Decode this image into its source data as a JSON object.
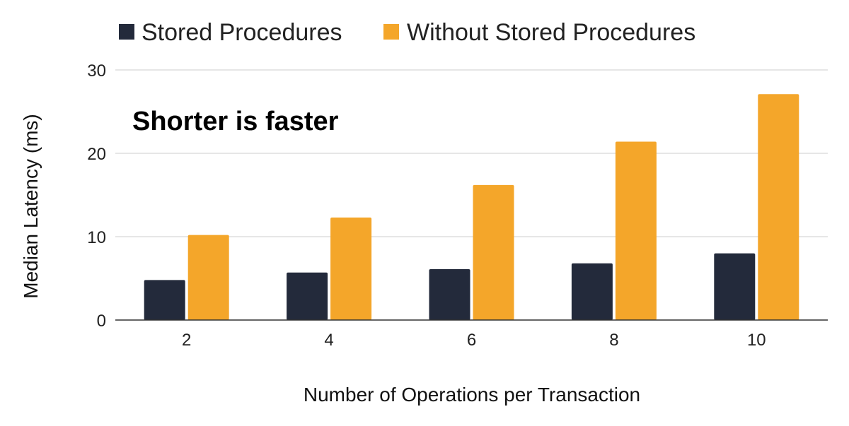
{
  "chart_data": {
    "type": "bar",
    "categories": [
      "2",
      "4",
      "6",
      "8",
      "10"
    ],
    "series": [
      {
        "name": "Stored Procedures",
        "color": "#232a3b",
        "values": [
          4.8,
          5.7,
          6.1,
          6.8,
          8.0
        ]
      },
      {
        "name": "Without Stored Procedures",
        "color": "#f4a62a",
        "values": [
          10.2,
          12.3,
          16.2,
          21.4,
          27.1
        ]
      }
    ],
    "xlabel": "Number of Operations per Transaction",
    "ylabel": "Median Latency (ms)",
    "ylim": [
      0,
      30
    ],
    "yticks": [
      "0",
      "10",
      "20",
      "30"
    ],
    "grid": true,
    "legend_position": "top-center",
    "annotation": "Shorter is faster"
  }
}
